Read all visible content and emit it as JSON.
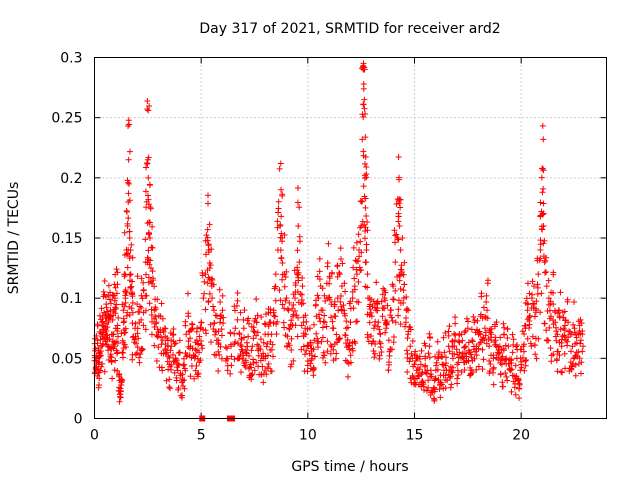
{
  "chart_data": {
    "type": "scatter",
    "title": "Day 317 of 2021, SRMTID for receiver ard2",
    "xlabel": "GPS time / hours",
    "ylabel": "SRMTID / TECUs",
    "xlim": [
      0,
      24
    ],
    "ylim": [
      0,
      0.3
    ],
    "xticks": [
      0,
      5,
      10,
      15,
      20
    ],
    "xtick_labels": [
      "0",
      "5",
      "10",
      "15",
      "20"
    ],
    "yticks": [
      0,
      0.05,
      0.1,
      0.15,
      0.2,
      0.25,
      0.3
    ],
    "ytick_labels": [
      "0",
      "0.05",
      "0.1",
      "0.15",
      "0.2",
      "0.25",
      "0.3"
    ],
    "grid": true,
    "marker": "plus",
    "series_color": "#ff0000",
    "x_range_hours": [
      0.0,
      22.9
    ],
    "note": "Dense scatter of about 2000 points; points below are a representative sample capturing the shape of the distribution.",
    "series": [
      {
        "name": "SRMTID",
        "points": [
          [
            0.0,
            0.048
          ],
          [
            0.05,
            0.058
          ],
          [
            0.1,
            0.052
          ],
          [
            0.15,
            0.065
          ],
          [
            0.2,
            0.045
          ],
          [
            0.25,
            0.072
          ],
          [
            0.3,
            0.056
          ],
          [
            0.35,
            0.08
          ],
          [
            0.4,
            0.062
          ],
          [
            0.45,
            0.088
          ],
          [
            0.5,
            0.07
          ],
          [
            0.55,
            0.095
          ],
          [
            0.6,
            0.076
          ],
          [
            0.65,
            0.102
          ],
          [
            0.7,
            0.066
          ],
          [
            0.75,
            0.09
          ],
          [
            0.8,
            0.058
          ],
          [
            0.85,
            0.082
          ],
          [
            0.9,
            0.07
          ],
          [
            0.95,
            0.098
          ],
          [
            1.0,
            0.075
          ],
          [
            1.05,
            0.104
          ],
          [
            1.1,
            0.068
          ],
          [
            1.15,
            0.036
          ],
          [
            1.2,
            0.02
          ],
          [
            1.25,
            0.03
          ],
          [
            1.3,
            0.055
          ],
          [
            1.35,
            0.09
          ],
          [
            1.4,
            0.12
          ],
          [
            1.45,
            0.1
          ],
          [
            1.5,
            0.14
          ],
          [
            1.55,
            0.16
          ],
          [
            1.6,
            0.215
          ],
          [
            1.62,
            0.195
          ],
          [
            1.65,
            0.15
          ],
          [
            1.7,
            0.12
          ],
          [
            1.75,
            0.105
          ],
          [
            1.8,
            0.088
          ],
          [
            1.9,
            0.075
          ],
          [
            2.0,
            0.095
          ],
          [
            2.1,
            0.08
          ],
          [
            2.2,
            0.102
          ],
          [
            2.3,
            0.088
          ],
          [
            2.4,
            0.13
          ],
          [
            2.45,
            0.18
          ],
          [
            2.5,
            0.215
          ],
          [
            2.52,
            0.2
          ],
          [
            2.55,
            0.178
          ],
          [
            2.6,
            0.15
          ],
          [
            2.65,
            0.125
          ],
          [
            2.7,
            0.112
          ],
          [
            2.8,
            0.09
          ],
          [
            2.9,
            0.08
          ],
          [
            3.0,
            0.072
          ],
          [
            3.1,
            0.085
          ],
          [
            3.2,
            0.065
          ],
          [
            3.3,
            0.075
          ],
          [
            3.4,
            0.055
          ],
          [
            3.5,
            0.045
          ],
          [
            3.6,
            0.06
          ],
          [
            3.7,
            0.07
          ],
          [
            3.8,
            0.05
          ],
          [
            3.9,
            0.04
          ],
          [
            4.0,
            0.055
          ],
          [
            4.1,
            0.03
          ],
          [
            4.2,
            0.045
          ],
          [
            4.3,
            0.07
          ],
          [
            4.4,
            0.085
          ],
          [
            4.5,
            0.06
          ],
          [
            4.6,
            0.075
          ],
          [
            4.7,
            0.05
          ],
          [
            4.8,
            0.065
          ],
          [
            4.9,
            0.055
          ],
          [
            5.0,
            0.08
          ],
          [
            5.1,
            0.1
          ],
          [
            5.2,
            0.12
          ],
          [
            5.3,
            0.148
          ],
          [
            5.35,
            0.14
          ],
          [
            5.4,
            0.125
          ],
          [
            5.5,
            0.11
          ],
          [
            5.6,
            0.09
          ],
          [
            5.7,
            0.072
          ],
          [
            5.8,
            0.065
          ],
          [
            5.9,
            0.085
          ],
          [
            6.0,
            0.09
          ],
          [
            6.2,
            0.05
          ],
          [
            6.4,
            0.06
          ],
          [
            6.6,
            0.075
          ],
          [
            6.7,
            0.082
          ],
          [
            6.8,
            0.07
          ],
          [
            6.9,
            0.06
          ],
          [
            7.0,
            0.075
          ],
          [
            7.1,
            0.055
          ],
          [
            7.2,
            0.068
          ],
          [
            7.3,
            0.045
          ],
          [
            7.4,
            0.06
          ],
          [
            7.5,
            0.072
          ],
          [
            7.6,
            0.08
          ],
          [
            7.7,
            0.058
          ],
          [
            7.8,
            0.066
          ],
          [
            7.9,
            0.05
          ],
          [
            8.0,
            0.07
          ],
          [
            8.1,
            0.062
          ],
          [
            8.2,
            0.08
          ],
          [
            8.3,
            0.07
          ],
          [
            8.4,
            0.09
          ],
          [
            8.5,
            0.12
          ],
          [
            8.6,
            0.14
          ],
          [
            8.7,
            0.16
          ],
          [
            8.75,
            0.168
          ],
          [
            8.8,
            0.15
          ],
          [
            8.9,
            0.12
          ],
          [
            9.0,
            0.1
          ],
          [
            9.1,
            0.09
          ],
          [
            9.2,
            0.078
          ],
          [
            9.3,
            0.085
          ],
          [
            9.4,
            0.1
          ],
          [
            9.5,
            0.12
          ],
          [
            9.55,
            0.16
          ],
          [
            9.6,
            0.13
          ],
          [
            9.7,
            0.095
          ],
          [
            9.8,
            0.08
          ],
          [
            9.9,
            0.07
          ],
          [
            10.0,
            0.06
          ],
          [
            10.1,
            0.075
          ],
          [
            10.2,
            0.05
          ],
          [
            10.3,
            0.065
          ],
          [
            10.4,
            0.085
          ],
          [
            10.5,
            0.1
          ],
          [
            10.6,
            0.11
          ],
          [
            10.7,
            0.09
          ],
          [
            10.8,
            0.08
          ],
          [
            10.9,
            0.1
          ],
          [
            11.0,
            0.112
          ],
          [
            11.1,
            0.095
          ],
          [
            11.2,
            0.075
          ],
          [
            11.3,
            0.085
          ],
          [
            11.4,
            0.1
          ],
          [
            11.5,
            0.12
          ],
          [
            11.6,
            0.11
          ],
          [
            11.7,
            0.09
          ],
          [
            11.8,
            0.075
          ],
          [
            11.9,
            0.06
          ],
          [
            12.0,
            0.08
          ],
          [
            12.1,
            0.1
          ],
          [
            12.2,
            0.11
          ],
          [
            12.3,
            0.12
          ],
          [
            12.4,
            0.14
          ],
          [
            12.5,
            0.16
          ],
          [
            12.55,
            0.232
          ],
          [
            12.6,
            0.293
          ],
          [
            12.62,
            0.278
          ],
          [
            12.65,
            0.265
          ],
          [
            12.68,
            0.202
          ],
          [
            12.7,
            0.175
          ],
          [
            12.75,
            0.14
          ],
          [
            12.8,
            0.12
          ],
          [
            12.9,
            0.1
          ],
          [
            13.0,
            0.085
          ],
          [
            13.1,
            0.075
          ],
          [
            13.2,
            0.09
          ],
          [
            13.3,
            0.08
          ],
          [
            13.4,
            0.07
          ],
          [
            13.5,
            0.085
          ],
          [
            13.6,
            0.1
          ],
          [
            13.7,
            0.078
          ],
          [
            13.8,
            0.065
          ],
          [
            13.9,
            0.09
          ],
          [
            14.0,
            0.11
          ],
          [
            14.1,
            0.13
          ],
          [
            14.2,
            0.15
          ],
          [
            14.25,
            0.168
          ],
          [
            14.3,
            0.16
          ],
          [
            14.35,
            0.14
          ],
          [
            14.4,
            0.12
          ],
          [
            14.5,
            0.1
          ],
          [
            14.6,
            0.08
          ],
          [
            14.7,
            0.07
          ],
          [
            14.8,
            0.06
          ],
          [
            14.9,
            0.05
          ],
          [
            15.0,
            0.045
          ],
          [
            15.1,
            0.04
          ],
          [
            15.2,
            0.035
          ],
          [
            15.3,
            0.045
          ],
          [
            15.4,
            0.03
          ],
          [
            15.5,
            0.05
          ],
          [
            15.6,
            0.04
          ],
          [
            15.7,
            0.06
          ],
          [
            15.8,
            0.035
          ],
          [
            15.9,
            0.025
          ],
          [
            16.0,
            0.04
          ],
          [
            16.1,
            0.05
          ],
          [
            16.2,
            0.03
          ],
          [
            16.3,
            0.045
          ],
          [
            16.4,
            0.055
          ],
          [
            16.5,
            0.04
          ],
          [
            16.6,
            0.06
          ],
          [
            16.7,
            0.035
          ],
          [
            16.8,
            0.05
          ],
          [
            16.9,
            0.065
          ],
          [
            17.0,
            0.045
          ],
          [
            17.1,
            0.055
          ],
          [
            17.2,
            0.07
          ],
          [
            17.3,
            0.05
          ],
          [
            17.4,
            0.06
          ],
          [
            17.5,
            0.075
          ],
          [
            17.6,
            0.055
          ],
          [
            17.7,
            0.065
          ],
          [
            17.8,
            0.08
          ],
          [
            17.9,
            0.06
          ],
          [
            18.0,
            0.07
          ],
          [
            18.1,
            0.085
          ],
          [
            18.2,
            0.065
          ],
          [
            18.3,
            0.075
          ],
          [
            18.4,
            0.09
          ],
          [
            18.5,
            0.06
          ],
          [
            18.6,
            0.07
          ],
          [
            18.7,
            0.05
          ],
          [
            18.8,
            0.065
          ],
          [
            18.9,
            0.055
          ],
          [
            19.0,
            0.06
          ],
          [
            19.1,
            0.045
          ],
          [
            19.2,
            0.07
          ],
          [
            19.3,
            0.05
          ],
          [
            19.4,
            0.06
          ],
          [
            19.5,
            0.04
          ],
          [
            19.6,
            0.055
          ],
          [
            19.7,
            0.035
          ],
          [
            19.8,
            0.05
          ],
          [
            19.9,
            0.025
          ],
          [
            20.0,
            0.045
          ],
          [
            20.1,
            0.06
          ],
          [
            20.2,
            0.075
          ],
          [
            20.3,
            0.09
          ],
          [
            20.4,
            0.085
          ],
          [
            20.5,
            0.1
          ],
          [
            20.6,
            0.11
          ],
          [
            20.7,
            0.09
          ],
          [
            20.8,
            0.12
          ],
          [
            20.9,
            0.14
          ],
          [
            20.95,
            0.172
          ],
          [
            21.0,
            0.188
          ],
          [
            21.05,
            0.16
          ],
          [
            21.1,
            0.13
          ],
          [
            21.2,
            0.11
          ],
          [
            21.3,
            0.1
          ],
          [
            21.4,
            0.085
          ],
          [
            21.5,
            0.095
          ],
          [
            21.6,
            0.08
          ],
          [
            21.7,
            0.07
          ],
          [
            21.8,
            0.085
          ],
          [
            21.9,
            0.06
          ],
          [
            22.0,
            0.075
          ],
          [
            22.1,
            0.065
          ],
          [
            22.2,
            0.08
          ],
          [
            22.3,
            0.07
          ],
          [
            22.4,
            0.06
          ],
          [
            22.5,
            0.075
          ],
          [
            22.6,
            0.055
          ],
          [
            22.7,
            0.07
          ],
          [
            22.8,
            0.065
          ],
          [
            22.9,
            0.06
          ]
        ]
      }
    ],
    "zero_points": [
      [
        5.05,
        0.0
      ],
      [
        6.35,
        0.0
      ],
      [
        6.45,
        0.0
      ]
    ]
  }
}
